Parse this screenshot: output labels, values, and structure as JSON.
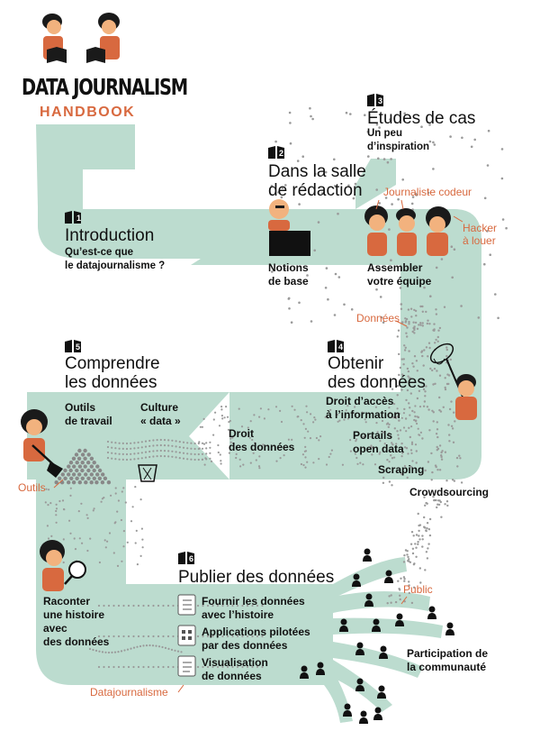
{
  "header": {
    "brand_line1": "DATA JOURNALISM",
    "brand_line2": "HANDBOOK"
  },
  "chapters": [
    {
      "number": "1",
      "title": "Introduction",
      "subtitle": "Qu’est-ce que\nle datajournalisme ?"
    },
    {
      "number": "2",
      "title": "Dans la salle\nde rédaction",
      "subtitle": ""
    },
    {
      "number": "3",
      "title": "Études de cas",
      "subtitle": "Un peu\nd’inspiration"
    },
    {
      "number": "4",
      "title": "Obtenir\ndes données",
      "subtitle": ""
    },
    {
      "number": "5",
      "title": "Comprendre\nles données",
      "subtitle": ""
    },
    {
      "number": "6",
      "title": "Publier des données",
      "subtitle": ""
    }
  ],
  "labels": {
    "notions": "Notions\nde base",
    "assembler": "Assembler\nvotre équipe",
    "journaliste_codeur": "Journaliste codeur",
    "hacker": "Hacker\nà louer",
    "donnees_flow": "Données",
    "droit_acces": "Droit d’accès\nà l’information",
    "droit_donnees": "Droit\ndes données",
    "portails": "Portails\nopen data",
    "scraping": "Scraping",
    "crowdsourcing": "Crowdsourcing",
    "outils_travail": "Outils\nde travail",
    "culture_data": "Culture\n« data »",
    "outils": "Outils",
    "raconter": "Raconter\nune histoire\navec\ndes données",
    "fournir": "Fournir les données\navec l’histoire",
    "applications": "Applications pilotées\npar des données",
    "visualisation": "Visualisation\nde données",
    "public": "Public",
    "participation": "Participation de\nla communauté",
    "datajournalisme": "Datajournalisme"
  },
  "colors": {
    "path": "#bcdccf",
    "accent": "#d8693f",
    "ink": "#111111",
    "shirt": "#d8693f",
    "skin": "#f2b27e"
  },
  "icons": [
    "reader-icon",
    "book-icon",
    "laptop-icon",
    "net-icon",
    "shovel-icon",
    "bin-icon",
    "magnifier-icon",
    "person-icon"
  ]
}
